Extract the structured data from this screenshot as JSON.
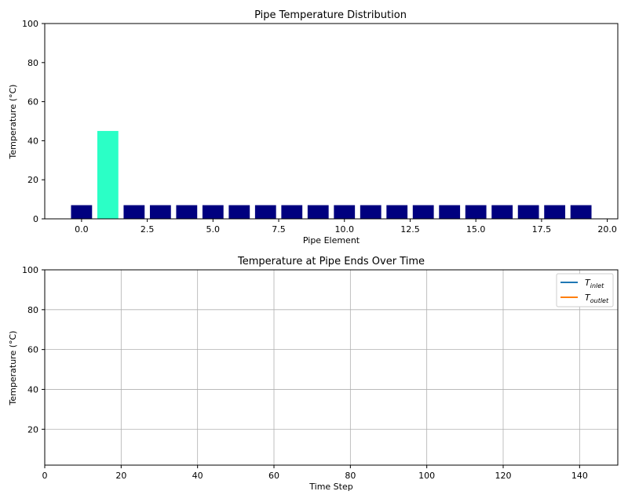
{
  "chart_data": [
    {
      "type": "bar",
      "title": "Pipe Temperature Distribution",
      "xlabel": "Pipe Element",
      "ylabel": "Temperature (°C)",
      "xlim": [
        -1.4,
        20.4
      ],
      "ylim": [
        0,
        100
      ],
      "x_ticks": [
        0.0,
        2.5,
        5.0,
        7.5,
        10.0,
        12.5,
        15.0,
        17.5,
        20.0
      ],
      "x_tick_labels": [
        "0.0",
        "2.5",
        "5.0",
        "7.5",
        "10.0",
        "12.5",
        "15.0",
        "17.5",
        "20.0"
      ],
      "y_ticks": [
        0,
        20,
        40,
        60,
        80,
        100
      ],
      "y_tick_labels": [
        "0",
        "20",
        "40",
        "60",
        "80",
        "100"
      ],
      "grid": false,
      "categories": [
        0,
        1,
        2,
        3,
        4,
        5,
        6,
        7,
        8,
        9,
        10,
        11,
        12,
        13,
        14,
        15,
        16,
        17,
        18,
        19
      ],
      "values": [
        7,
        45,
        7,
        7,
        7,
        7,
        7,
        7,
        7,
        7,
        7,
        7,
        7,
        7,
        7,
        7,
        7,
        7,
        7,
        7
      ],
      "bar_colors": [
        "#00007f",
        "#2bffc6",
        "#00007f",
        "#00007f",
        "#00007f",
        "#00007f",
        "#00007f",
        "#00007f",
        "#00007f",
        "#00007f",
        "#00007f",
        "#00007f",
        "#00007f",
        "#00007f",
        "#00007f",
        "#00007f",
        "#00007f",
        "#00007f",
        "#00007f",
        "#00007f"
      ],
      "bar_width": 0.8
    },
    {
      "type": "line",
      "title": "Temperature at Pipe Ends Over Time",
      "xlabel": "Time Step",
      "ylabel": "Temperature (°C)",
      "xlim": [
        0,
        150
      ],
      "ylim": [
        2,
        100
      ],
      "x_ticks": [
        0,
        20,
        40,
        60,
        80,
        100,
        120,
        140
      ],
      "x_tick_labels": [
        "0",
        "20",
        "40",
        "60",
        "80",
        "100",
        "120",
        "140"
      ],
      "y_ticks": [
        20,
        40,
        60,
        80,
        100
      ],
      "y_tick_labels": [
        "20",
        "40",
        "60",
        "80",
        "100"
      ],
      "grid": true,
      "legend_position": "top-right",
      "series": [
        {
          "name": "T",
          "subscript": "inlet",
          "color": "#1f77b4",
          "x": [],
          "y": []
        },
        {
          "name": "T",
          "subscript": "outlet",
          "color": "#ff7f0e",
          "x": [],
          "y": []
        }
      ]
    }
  ]
}
